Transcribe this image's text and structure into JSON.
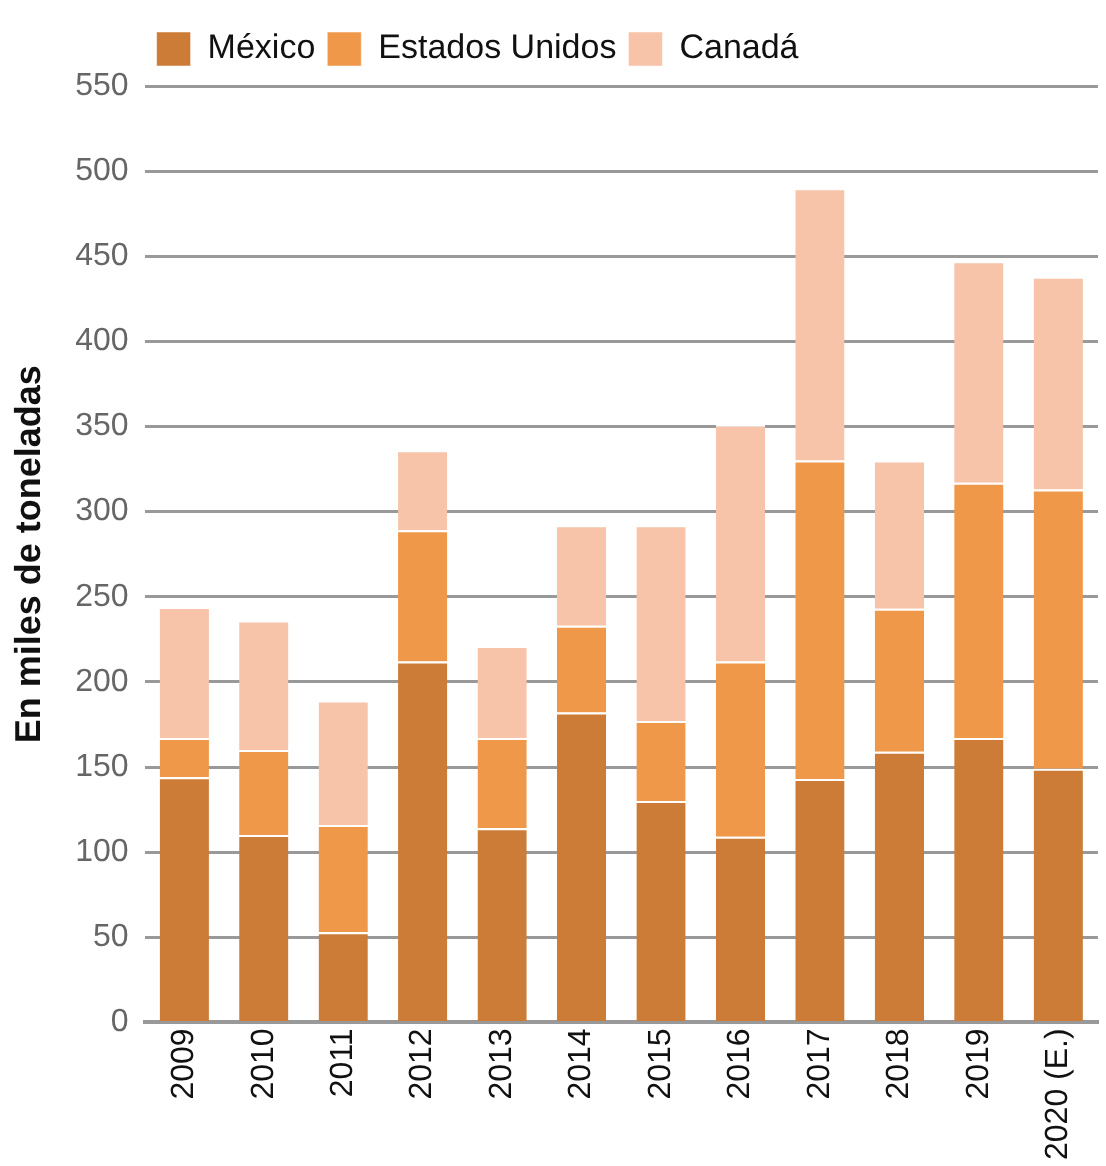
{
  "chart_data": {
    "type": "bar",
    "stacked": true,
    "ylabel": "En miles de toneladas",
    "categories": [
      "2009",
      "2010",
      "2011",
      "2012",
      "2013",
      "2014",
      "2015",
      "2016",
      "2017",
      "2018",
      "2019",
      "2020 (E.)"
    ],
    "series": [
      {
        "name": "México",
        "color": "#cc7c37",
        "values": [
          144,
          110,
          53,
          212,
          114,
          182,
          130,
          109,
          143,
          159,
          167,
          149
        ]
      },
      {
        "name": "Estados Unidos",
        "color": "#f0984a",
        "values": [
          23,
          50,
          63,
          77,
          53,
          51,
          47,
          103,
          187,
          84,
          150,
          164
        ]
      },
      {
        "name": "Canadá",
        "color": "#f7c3a9",
        "values": [
          77,
          76,
          73,
          47,
          54,
          59,
          115,
          139,
          160,
          87,
          130,
          125
        ]
      }
    ],
    "ylim": [
      0,
      550
    ],
    "yticks": [
      0,
      50,
      100,
      150,
      200,
      250,
      300,
      350,
      400,
      450,
      500,
      550
    ],
    "grid": "y",
    "legend": "top left"
  }
}
